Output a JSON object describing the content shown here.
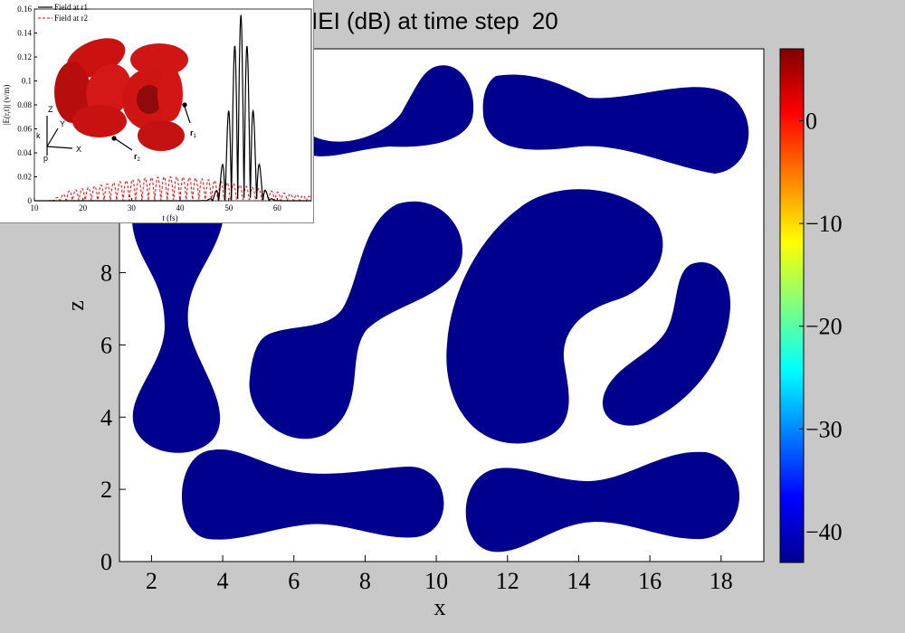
{
  "chart_data": [
    {
      "type": "heatmap",
      "title_visible": "IEI (dB) at time step",
      "time_step": "20",
      "xlabel": "x",
      "ylabel": "z",
      "x_ticks": [
        "2",
        "4",
        "6",
        "8",
        "10",
        "12",
        "14",
        "16",
        "18"
      ],
      "y_ticks": [
        "0",
        "2",
        "4",
        "6",
        "8"
      ],
      "xlim": [
        1.1,
        19.2
      ],
      "ylim": [
        0,
        14.2
      ],
      "colorbar": {
        "ticks": [
          "0",
          "-10",
          "-20",
          "-30",
          "-40"
        ],
        "range": [
          -43,
          7
        ],
        "colormap": "jet"
      },
      "field_value_in_blobs_dB": -43,
      "background_color": "#ffffff",
      "blob_color": "#00008f",
      "grid": false
    },
    {
      "type": "line",
      "xlabel": "t (fs)",
      "ylabel": "|E(r,t)| (v/m)",
      "xlim": [
        10,
        67
      ],
      "ylim": [
        0,
        0.16
      ],
      "x_ticks": [
        "10",
        "20",
        "30",
        "40",
        "50",
        "60"
      ],
      "y_ticks": [
        "0",
        "0.02",
        "0.04",
        "0.06",
        "0.08",
        "0.1",
        "0.12",
        "0.14",
        "0.16"
      ],
      "legend_position": "top-left",
      "series": [
        {
          "name": "Field at r1",
          "style": "solid",
          "color": "#000000",
          "envelope": {
            "center": 52.5,
            "width": 3.0,
            "peak": 0.155,
            "period": 1.3
          }
        },
        {
          "name": "Field at r2",
          "style": "dashed",
          "color": "#ff0000",
          "envelope": {
            "center": 38,
            "width": 22,
            "peak": 0.02,
            "period": 1.3
          }
        }
      ],
      "diagram_labels": {
        "z": "Z",
        "y": "Y",
        "x": "X",
        "k": "k",
        "p": "p",
        "r1": "r",
        "r2": "r"
      }
    }
  ]
}
